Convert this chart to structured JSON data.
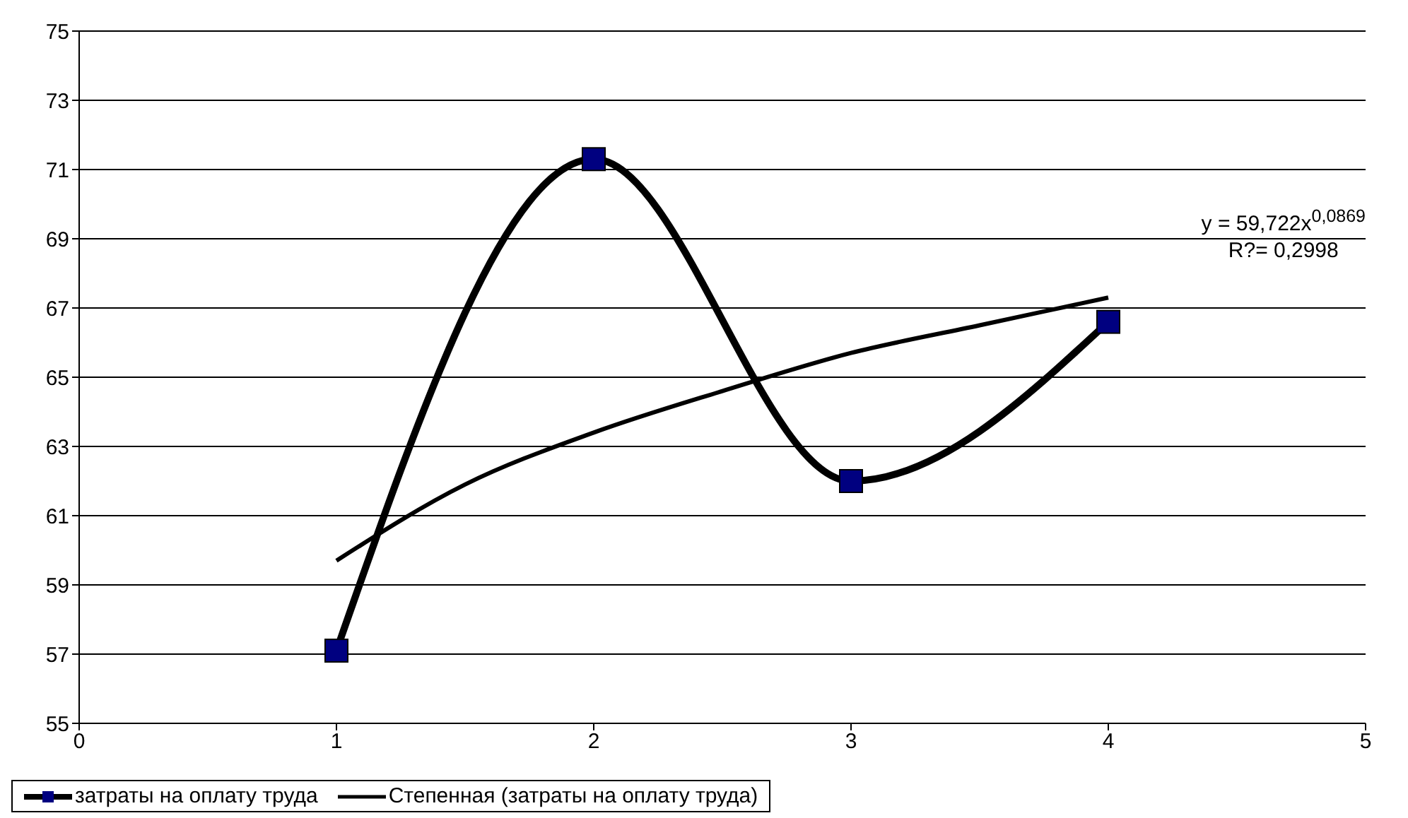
{
  "chart_data": {
    "type": "line",
    "xlim": [
      0,
      5
    ],
    "xticks": [
      0,
      1,
      2,
      3,
      4,
      5
    ],
    "ylim": [
      55,
      75
    ],
    "yticks": [
      55,
      57,
      59,
      61,
      63,
      65,
      67,
      69,
      71,
      73,
      75
    ],
    "grid": "y",
    "legend": "bottom",
    "series": [
      {
        "name": "затраты на оплату труда",
        "color": "#000000",
        "x": [
          1,
          2,
          3,
          4
        ],
        "values": [
          57.1,
          71.3,
          62.0,
          66.6
        ],
        "marker": "square"
      },
      {
        "name": "Степенная (затраты на оплату труда)",
        "color": "#000000",
        "x": [
          1,
          1.5,
          2,
          2.5,
          3,
          3.5,
          4
        ],
        "values": [
          59.7,
          61.9,
          63.4,
          64.6,
          65.7,
          66.5,
          67.3
        ],
        "marker": "none"
      }
    ],
    "annotations": [
      "y = 59,722x$^{0,0869}$",
      "R?= 0,2998"
    ]
  }
}
